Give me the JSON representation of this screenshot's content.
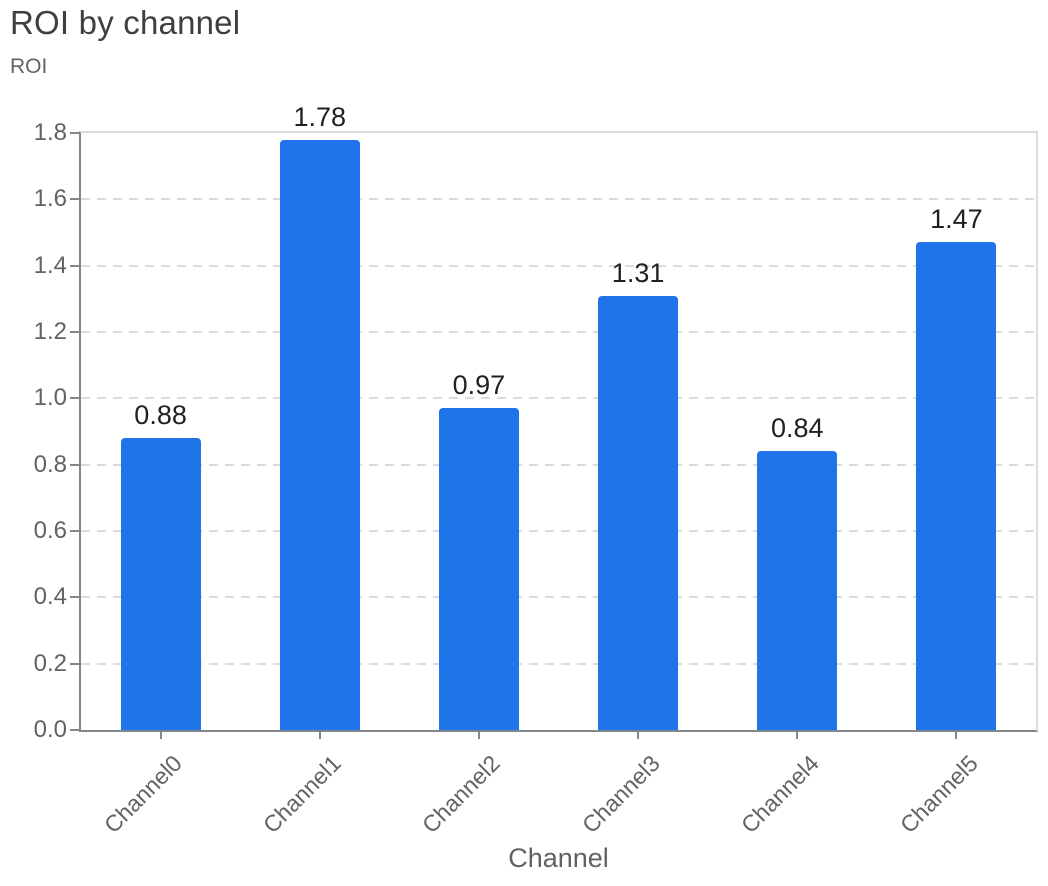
{
  "header": {
    "title": "ROI by channel"
  },
  "chart_data": {
    "type": "bar",
    "title": "ROI by channel",
    "categories": [
      "Channel0",
      "Channel1",
      "Channel2",
      "Channel3",
      "Channel4",
      "Channel5"
    ],
    "values": [
      0.88,
      1.78,
      0.97,
      1.31,
      0.84,
      1.47
    ],
    "value_labels": [
      "0.88",
      "1.78",
      "0.97",
      "1.31",
      "0.84",
      "1.47"
    ],
    "xlabel": "Channel",
    "ylabel": "ROI",
    "ylim": [
      0,
      1.8
    ],
    "y_ticks": [
      "0.0",
      "0.2",
      "0.4",
      "0.6",
      "0.8",
      "1.0",
      "1.2",
      "1.4",
      "1.6",
      "1.8"
    ],
    "grid": "horizontal-dashed",
    "legend": "none",
    "x_label_rotation_deg": -45,
    "colors": {
      "bar": "#1e74e8",
      "grid": "#dadce0",
      "axis": "#80868b",
      "title": "#3c4043",
      "axis_label": "#5f6368",
      "value_label": "#202124",
      "background": "#ffffff"
    }
  }
}
